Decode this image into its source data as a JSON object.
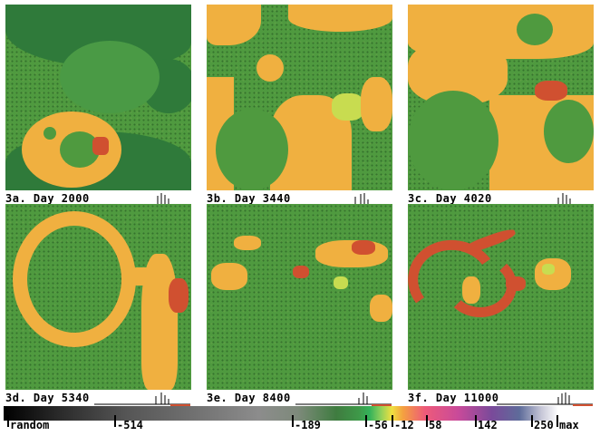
{
  "panels": [
    {
      "caption": "3a. Day 2000"
    },
    {
      "caption": "3b. Day 3440"
    },
    {
      "caption": "3c. Day 4020"
    },
    {
      "caption": "3d. Day 5340"
    },
    {
      "caption": "3e. Day 8400"
    },
    {
      "caption": "3f. Day 11000"
    }
  ],
  "colorbar": {
    "labels": [
      "random",
      "-514",
      "-189",
      "-56",
      "-12",
      "58",
      "142",
      "250",
      "max"
    ]
  },
  "colors": {
    "green": "#4f9a3f",
    "dark_green": "#2f7a35",
    "orange": "#f0b040",
    "red": "#d05030",
    "yellow_green": "#c8dc50"
  }
}
